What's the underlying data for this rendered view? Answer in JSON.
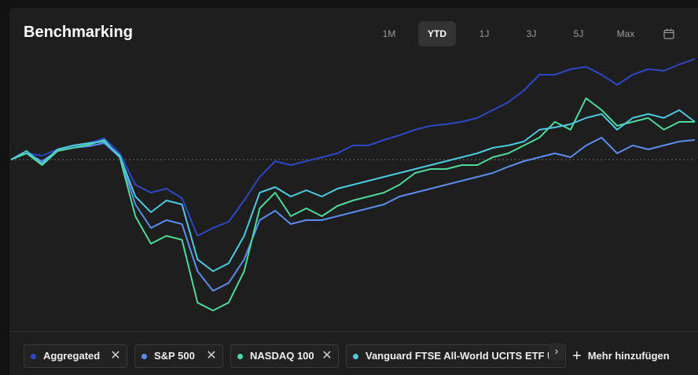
{
  "chart_data": {
    "type": "line",
    "title": "Benchmarking",
    "ylim": [
      -21,
      14
    ],
    "baseline": 0,
    "series": [
      {
        "name": "Aggregated",
        "color": "#2f46c4",
        "values": [
          0,
          0.8,
          0.5,
          1.3,
          1.7,
          2.1,
          2.7,
          0.8,
          -3.2,
          -4.2,
          -3.7,
          -4.9,
          -9.7,
          -8.7,
          -7.9,
          -5.2,
          -2.2,
          -0.2,
          -0.7,
          -0.2,
          0.3,
          0.8,
          1.8,
          1.8,
          2.5,
          3.1,
          3.8,
          4.3,
          4.5,
          4.8,
          5.3,
          6.3,
          7.3,
          8.8,
          10.8,
          10.8,
          11.5,
          11.8,
          10.8,
          9.5,
          10.8,
          11.5,
          11.3,
          12.1,
          12.8
        ]
      },
      {
        "name": "S&P 500",
        "color": "#5b8def",
        "values": [
          0,
          0.8,
          -0.2,
          1.1,
          1.5,
          1.7,
          2.1,
          0.3,
          -5.7,
          -8.7,
          -7.7,
          -8.2,
          -14.2,
          -16.7,
          -15.7,
          -12.7,
          -7.7,
          -6.5,
          -8.2,
          -7.7,
          -7.7,
          -7.2,
          -6.7,
          -6.2,
          -5.7,
          -4.7,
          -4.2,
          -3.7,
          -3.2,
          -2.7,
          -2.2,
          -1.7,
          -0.9,
          -0.2,
          0.3,
          0.8,
          0.3,
          1.8,
          2.8,
          0.8,
          1.8,
          1.3,
          1.8,
          2.3,
          2.5
        ]
      },
      {
        "name": "NASDAQ 100",
        "color": "#4fd89c",
        "values": [
          0,
          0.8,
          -0.7,
          1.1,
          1.5,
          1.9,
          2.5,
          0.3,
          -7.2,
          -10.7,
          -9.7,
          -10.2,
          -18.2,
          -19.2,
          -18.2,
          -14.2,
          -6.2,
          -4.2,
          -7.2,
          -6.2,
          -7.2,
          -5.9,
          -5.2,
          -4.7,
          -4.2,
          -3.2,
          -1.7,
          -1.2,
          -1.2,
          -0.7,
          -0.7,
          0.3,
          0.8,
          1.8,
          2.8,
          4.8,
          3.8,
          7.8,
          6.3,
          4.3,
          4.8,
          5.3,
          3.8,
          4.8,
          4.8
        ]
      },
      {
        "name": "Vanguard FTSE All-World UCITS ETF US",
        "color": "#4ec9e0",
        "values": [
          0,
          1.1,
          -0.5,
          1.3,
          1.8,
          2.1,
          2.3,
          0.5,
          -4.7,
          -6.7,
          -5.2,
          -5.7,
          -12.7,
          -14.2,
          -13.2,
          -9.7,
          -4.2,
          -3.5,
          -4.7,
          -3.9,
          -4.7,
          -3.7,
          -3.2,
          -2.7,
          -2.2,
          -1.7,
          -1.2,
          -0.7,
          -0.2,
          0.3,
          0.8,
          1.5,
          1.8,
          2.3,
          3.8,
          4.1,
          4.5,
          5.3,
          5.8,
          3.8,
          5.3,
          5.8,
          5.3,
          6.3,
          4.8
        ]
      }
    ]
  },
  "controls": {
    "ranges": [
      "1M",
      "YTD",
      "1J",
      "3J",
      "5J",
      "Max"
    ],
    "add_button": "Mehr hinzufügen"
  }
}
